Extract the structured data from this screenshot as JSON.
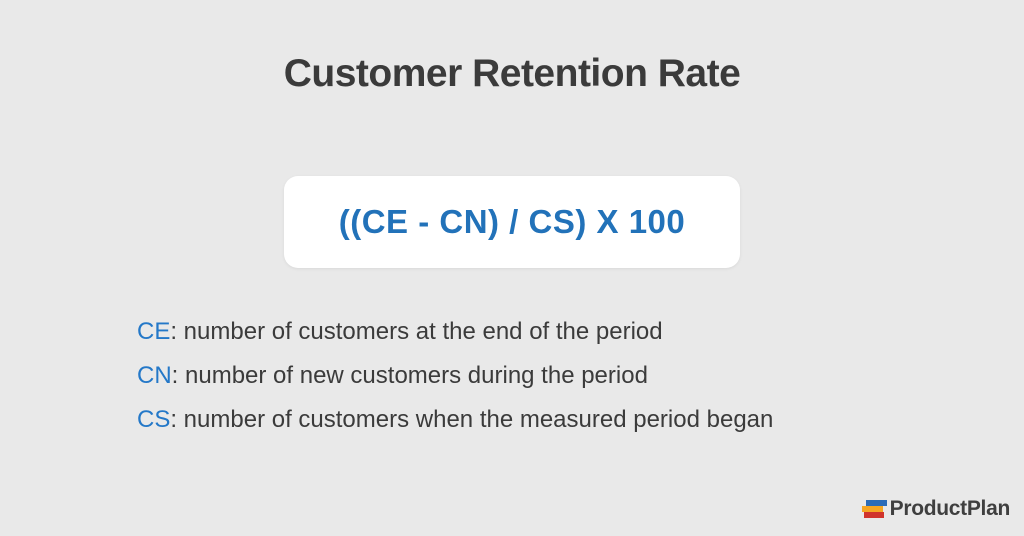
{
  "title": "Customer Retention Rate",
  "formula": {
    "text": "((CE - CN) / CS) X 100"
  },
  "definitions": [
    {
      "term": "CE",
      "rest": ": number of customers at the end of the period"
    },
    {
      "term": "CN",
      "rest": ": number of new customers during the period"
    },
    {
      "term": "CS",
      "rest": ": number of customers when the measured period began"
    }
  ],
  "logo": {
    "text": "ProductPlan",
    "icon": "roadmap-bars-icon",
    "bar_colors": [
      "#2b6cb8",
      "#f5a623",
      "#d0342c"
    ]
  },
  "colors": {
    "background": "#e9e9e9",
    "formula_blue": "#2272b9",
    "term_blue": "#2478c8",
    "text_dark": "#3b3b3b"
  }
}
